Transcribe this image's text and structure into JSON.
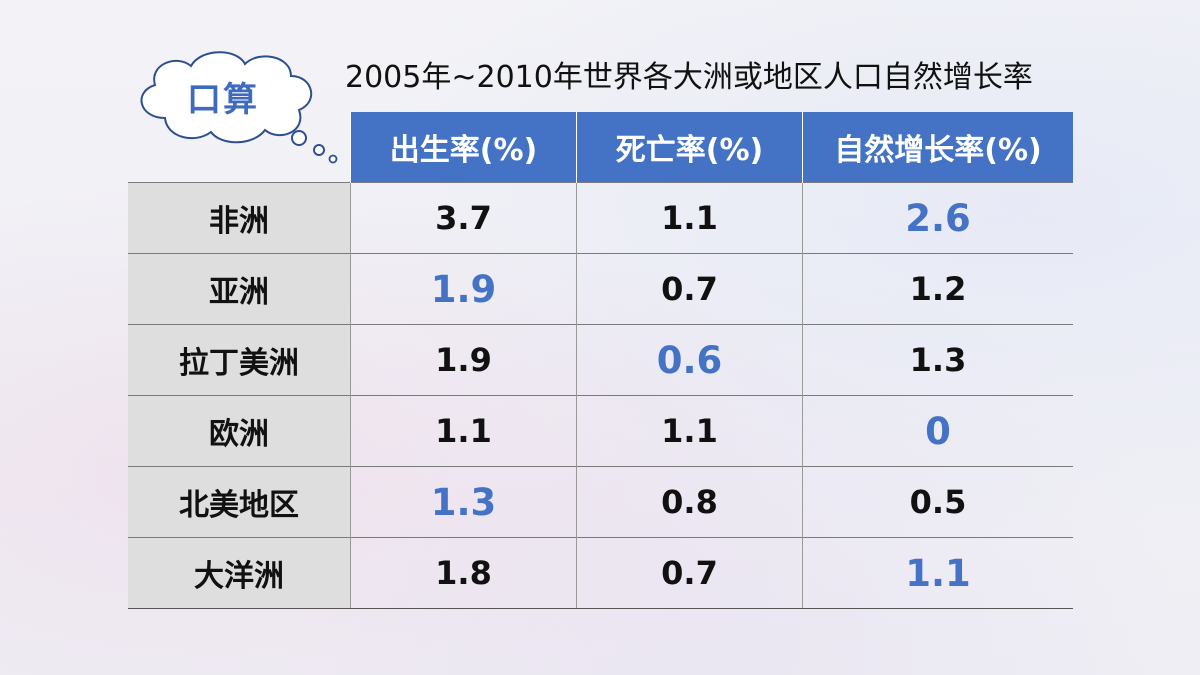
{
  "badge": {
    "label": "口算"
  },
  "title": "2005年~2010年世界各大洲或地区人口自然增长率",
  "table": {
    "columns": [
      "出生率(%)",
      "死亡率(%)",
      "自然增长率(%)"
    ],
    "rows": [
      {
        "name": "非洲",
        "values": [
          "3.7",
          "1.1",
          "2.6"
        ],
        "highlight": [
          false,
          false,
          true
        ]
      },
      {
        "name": "亚洲",
        "values": [
          "1.9",
          "0.7",
          "1.2"
        ],
        "highlight": [
          true,
          false,
          false
        ]
      },
      {
        "name": "拉丁美洲",
        "values": [
          "1.9",
          "0.6",
          "1.3"
        ],
        "highlight": [
          false,
          true,
          false
        ]
      },
      {
        "name": "欧洲",
        "values": [
          "1.1",
          "1.1",
          "0"
        ],
        "highlight": [
          false,
          false,
          true
        ]
      },
      {
        "name": "北美地区",
        "values": [
          "1.3",
          "0.8",
          "0.5"
        ],
        "highlight": [
          true,
          false,
          false
        ]
      },
      {
        "name": "大洋洲",
        "values": [
          "1.8",
          "0.7",
          "1.1"
        ],
        "highlight": [
          false,
          false,
          true
        ]
      }
    ]
  },
  "colors": {
    "header": "#4472c4",
    "highlight": "#4472c4",
    "rowname_bg": "#dedede"
  }
}
